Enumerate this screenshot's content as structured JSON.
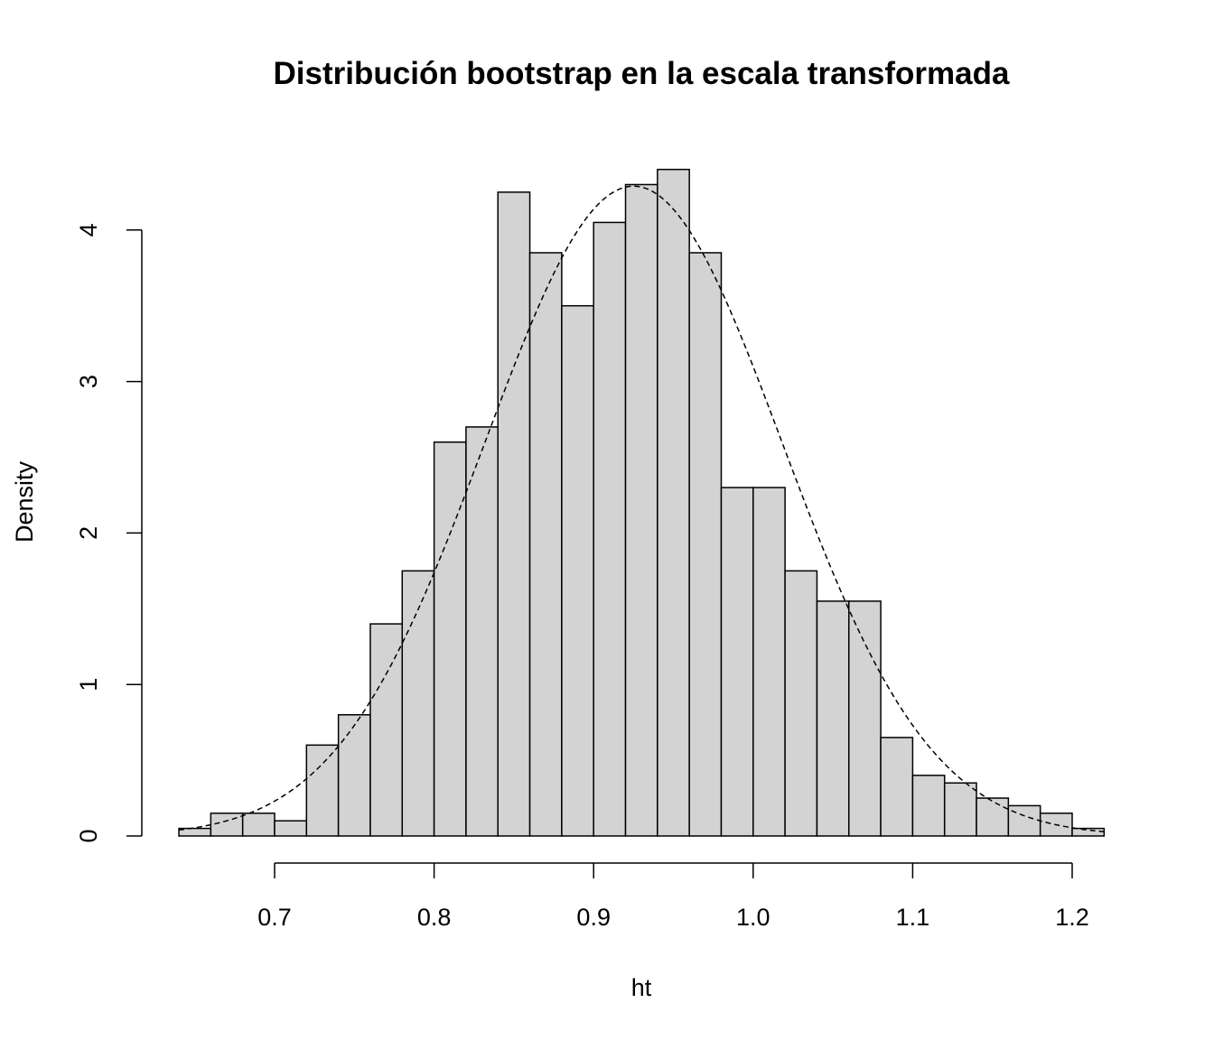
{
  "chart_data": {
    "type": "bar",
    "title": "Distribución bootstrap en la escala transformada",
    "xlabel": "ht",
    "ylabel": "Density",
    "xlim": [
      0.64,
      1.22
    ],
    "ylim": [
      0,
      4.4
    ],
    "x_ticks": [
      0.7,
      0.8,
      0.9,
      1.0,
      1.1,
      1.2
    ],
    "x_tick_labels": [
      "0.7",
      "0.8",
      "0.9",
      "1.0",
      "1.1",
      "1.2"
    ],
    "y_ticks": [
      0,
      1,
      2,
      3,
      4
    ],
    "y_tick_labels": [
      "0",
      "1",
      "2",
      "3",
      "4"
    ],
    "bin_width": 0.02,
    "bins": [
      {
        "x0": 0.64,
        "x1": 0.66,
        "density": 0.05
      },
      {
        "x0": 0.66,
        "x1": 0.68,
        "density": 0.15
      },
      {
        "x0": 0.68,
        "x1": 0.7,
        "density": 0.15
      },
      {
        "x0": 0.7,
        "x1": 0.72,
        "density": 0.1
      },
      {
        "x0": 0.72,
        "x1": 0.74,
        "density": 0.6
      },
      {
        "x0": 0.74,
        "x1": 0.76,
        "density": 0.8
      },
      {
        "x0": 0.76,
        "x1": 0.78,
        "density": 1.4
      },
      {
        "x0": 0.78,
        "x1": 0.8,
        "density": 1.75
      },
      {
        "x0": 0.8,
        "x1": 0.82,
        "density": 2.6
      },
      {
        "x0": 0.82,
        "x1": 0.84,
        "density": 2.7
      },
      {
        "x0": 0.84,
        "x1": 0.86,
        "density": 4.25
      },
      {
        "x0": 0.86,
        "x1": 0.88,
        "density": 3.85
      },
      {
        "x0": 0.88,
        "x1": 0.9,
        "density": 3.5
      },
      {
        "x0": 0.9,
        "x1": 0.92,
        "density": 4.05
      },
      {
        "x0": 0.92,
        "x1": 0.94,
        "density": 4.3
      },
      {
        "x0": 0.94,
        "x1": 0.96,
        "density": 4.4
      },
      {
        "x0": 0.96,
        "x1": 0.98,
        "density": 3.85
      },
      {
        "x0": 0.98,
        "x1": 1.0,
        "density": 2.3
      },
      {
        "x0": 1.0,
        "x1": 1.02,
        "density": 2.3
      },
      {
        "x0": 1.02,
        "x1": 1.04,
        "density": 1.75
      },
      {
        "x0": 1.04,
        "x1": 1.06,
        "density": 1.55
      },
      {
        "x0": 1.06,
        "x1": 1.08,
        "density": 1.55
      },
      {
        "x0": 1.08,
        "x1": 1.1,
        "density": 0.65
      },
      {
        "x0": 1.1,
        "x1": 1.12,
        "density": 0.4
      },
      {
        "x0": 1.12,
        "x1": 1.14,
        "density": 0.35
      },
      {
        "x0": 1.14,
        "x1": 1.16,
        "density": 0.25
      },
      {
        "x0": 1.16,
        "x1": 1.18,
        "density": 0.2
      },
      {
        "x0": 1.18,
        "x1": 1.2,
        "density": 0.15
      },
      {
        "x0": 1.2,
        "x1": 1.22,
        "density": 0.05
      }
    ],
    "density_curve": {
      "style": "dashed",
      "mean": 0.925,
      "sd": 0.093
    },
    "grid": false
  }
}
